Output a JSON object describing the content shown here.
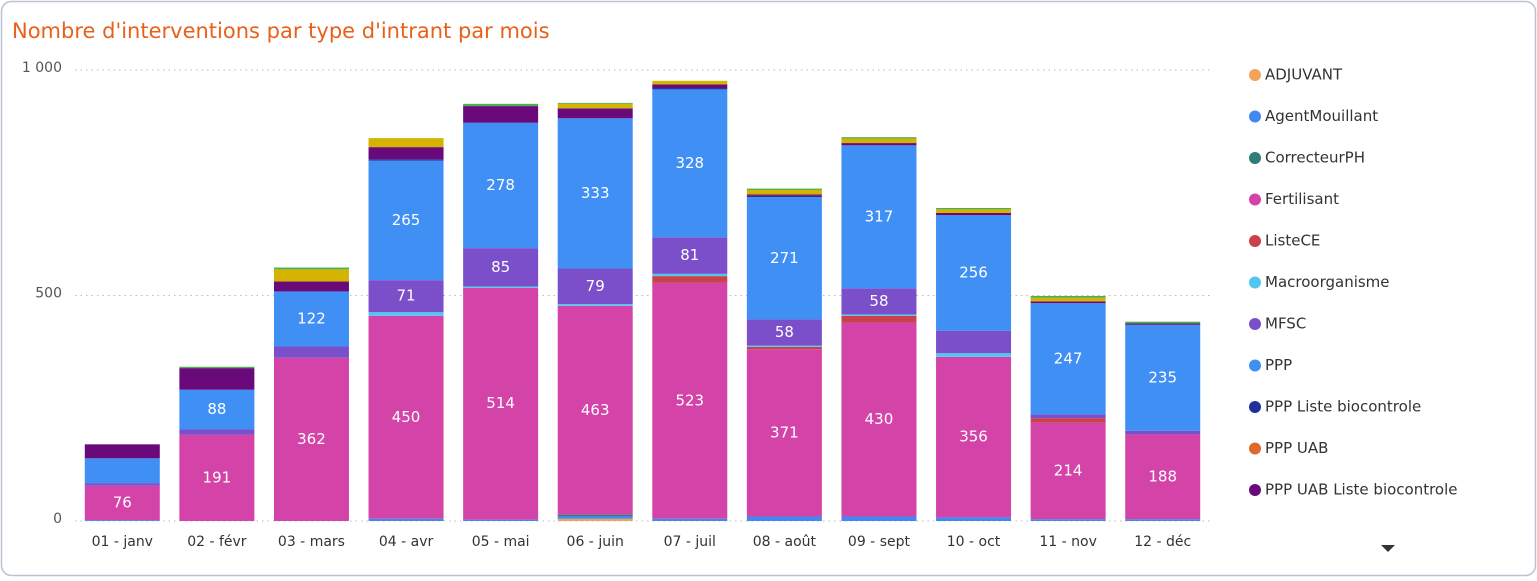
{
  "chart_data": {
    "type": "stacked-bar",
    "title": "Nombre d'interventions par type d'intrant par mois",
    "categories": [
      "01 - janv",
      "02 - févr",
      "03 - mars",
      "04 - avr",
      "05 - mai",
      "06 - juin",
      "07 - juil",
      "08 - août",
      "09 - sept",
      "10 - oct",
      "11 - nov",
      "12 - déc"
    ],
    "series": [
      {
        "name": "ADJUVANT",
        "color": "#f4a259",
        "values": [
          0,
          0,
          0,
          0,
          0,
          5,
          0,
          0,
          0,
          0,
          0,
          0
        ]
      },
      {
        "name": "AgentMouillant",
        "color": "#4189f0",
        "values": [
          2,
          0,
          0,
          5,
          3,
          6,
          5,
          10,
          10,
          8,
          4,
          4
        ]
      },
      {
        "name": "CorrecteurPH",
        "color": "#2e7d7a",
        "values": [
          0,
          0,
          0,
          0,
          0,
          3,
          0,
          0,
          0,
          0,
          0,
          0
        ]
      },
      {
        "name": "Fertilisant",
        "color": "#d444a8",
        "values": [
          76,
          191,
          362,
          450,
          514,
          463,
          523,
          371,
          430,
          356,
          214,
          188
        ]
      },
      {
        "name": "ListeCE",
        "color": "#c8414b",
        "values": [
          0,
          0,
          0,
          0,
          0,
          0,
          15,
          5,
          15,
          0,
          10,
          0
        ]
      },
      {
        "name": "Macroorganisme",
        "color": "#52c6ee",
        "values": [
          0,
          0,
          0,
          8,
          3,
          4,
          5,
          3,
          3,
          8,
          0,
          0
        ]
      },
      {
        "name": "MFSC",
        "color": "#7a4fc9",
        "values": [
          6,
          12,
          25,
          71,
          85,
          79,
          81,
          58,
          58,
          50,
          8,
          8
        ]
      },
      {
        "name": "PPP",
        "color": "#3f8ff5",
        "values": [
          55,
          88,
          122,
          265,
          278,
          333,
          328,
          271,
          317,
          256,
          247,
          235
        ]
      },
      {
        "name": "PPP  Liste biocontrole",
        "color": "#1f2fa0",
        "values": [
          0,
          0,
          0,
          3,
          0,
          0,
          3,
          3,
          0,
          0,
          0,
          0
        ]
      },
      {
        "name": "PPP UAB",
        "color": "#e06a2c",
        "values": [
          0,
          0,
          0,
          0,
          0,
          0,
          0,
          0,
          0,
          0,
          0,
          0
        ]
      },
      {
        "name": "PPP UAB Liste biocontrole",
        "color": "#6a0a7a",
        "values": [
          31,
          48,
          22,
          27,
          37,
          22,
          8,
          3,
          5,
          5,
          4,
          3
        ]
      },
      {
        "name": null,
        "color": "#d4b400",
        "values": [
          0,
          0,
          27,
          20,
          0,
          10,
          8,
          10,
          10,
          8,
          8,
          0
        ]
      },
      {
        "name": null,
        "color": "#4caf50",
        "values": [
          0,
          3,
          4,
          0,
          5,
          2,
          0,
          3,
          3,
          3,
          4,
          4
        ]
      }
    ],
    "ylim": [
      0,
      1000
    ],
    "yticks": [
      0,
      500,
      {
        "value": 1000,
        "label": "1 000"
      }
    ],
    "grid": true,
    "legend": "right"
  }
}
